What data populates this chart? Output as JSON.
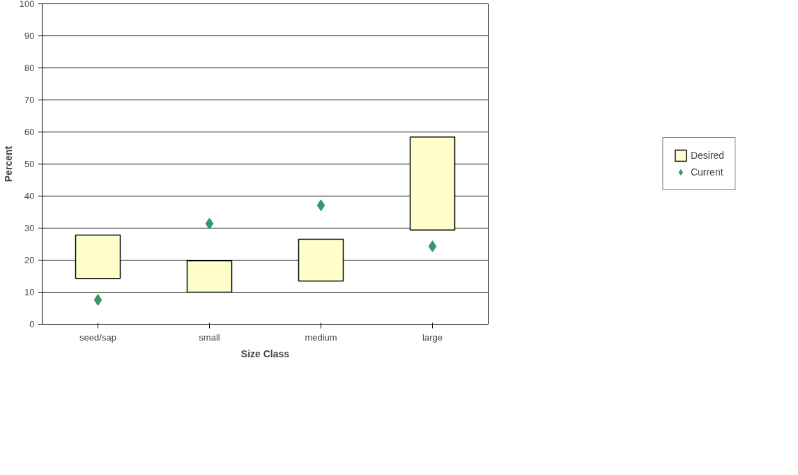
{
  "chart_data": {
    "type": "bar",
    "xlabel": "Size Class",
    "ylabel": "Percent",
    "categories": [
      "seed/sap",
      "small",
      "medium",
      "large"
    ],
    "series": [
      {
        "name": "Desired",
        "color": "#ffffcc",
        "base": [
          14.3,
          10.0,
          13.5,
          29.4
        ],
        "values": [
          13.5,
          9.8,
          13.0,
          29.0
        ]
      },
      {
        "name": "Current",
        "type": "scatter",
        "color": "#339966",
        "marker": "diamond",
        "values": [
          7.6,
          31.4,
          37.1,
          24.3
        ]
      }
    ],
    "ylim": [
      0,
      100
    ],
    "yticks": [
      0,
      10,
      20,
      30,
      40,
      50,
      60,
      70,
      80,
      90,
      100
    ],
    "grid": "y",
    "legend": "right"
  }
}
